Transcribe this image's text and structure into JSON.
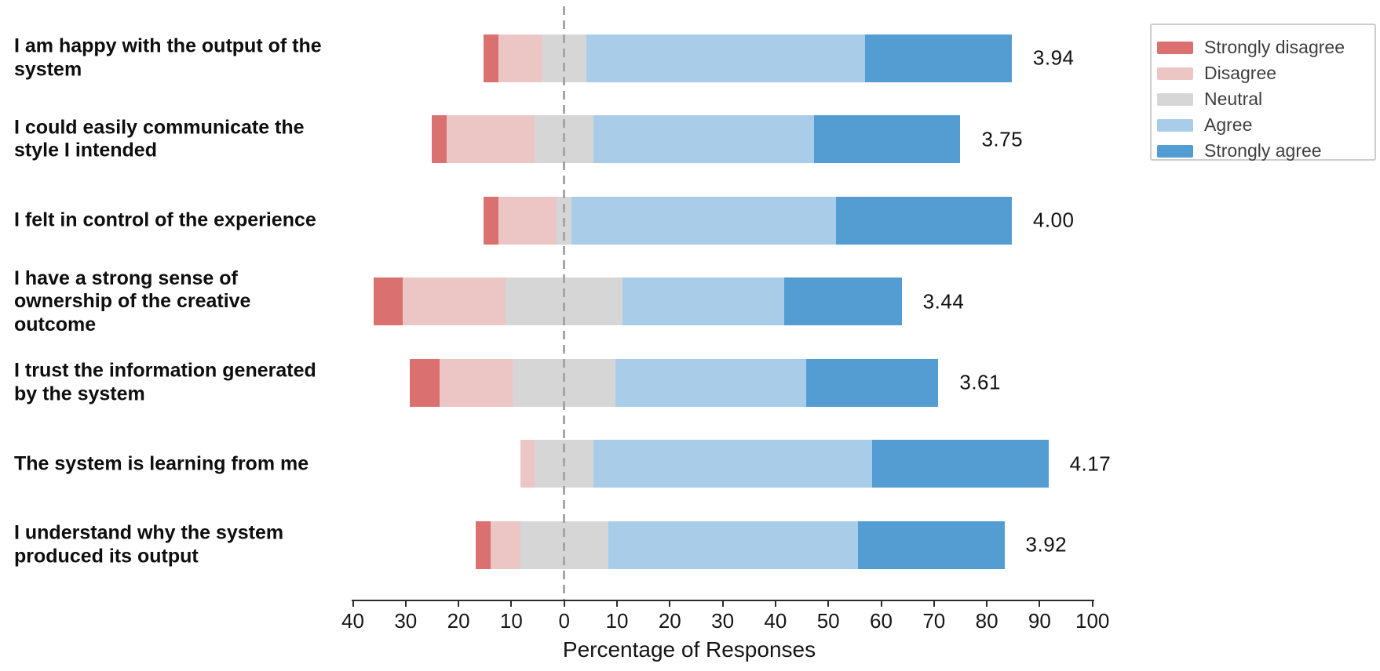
{
  "chart_data": {
    "type": "diverging_stacked_bar",
    "orientation": "horizontal",
    "title": "",
    "xlabel": "Percentage of Responses",
    "ylabel": "",
    "xlim": [
      -40,
      100
    ],
    "grid": false,
    "zero_reference_line": "dashed",
    "neutral_centered_on_zero": true,
    "legend_position": "upper right",
    "categories": [
      "I am happy with the output of the\nsystem",
      "I could easily communicate the\nstyle I intended",
      "I felt in control of the experience",
      "I have a strong sense of\nownership of the creative\noutcome",
      "I trust the information generated\nby the system",
      "The system is learning from me",
      "I understand why the system\nproduced its output"
    ],
    "series": [
      {
        "name": "Strongly disagree",
        "color": "#db7070",
        "values": [
          2.78,
          2.78,
          2.78,
          5.56,
          5.56,
          0,
          2.78
        ]
      },
      {
        "name": "Disagree",
        "color": "#ecc6c5",
        "values": [
          8.33,
          16.67,
          11.11,
          19.44,
          13.89,
          2.78,
          5.56
        ]
      },
      {
        "name": "Neutral",
        "color": "#d6d6d6",
        "values": [
          8.33,
          11.11,
          2.78,
          22.22,
          19.44,
          11.11,
          16.67
        ]
      },
      {
        "name": "Agree",
        "color": "#a9cce9",
        "values": [
          52.78,
          41.67,
          50.0,
          30.56,
          36.11,
          52.78,
          47.22
        ]
      },
      {
        "name": "Strongly agree",
        "color": "#549dd3",
        "values": [
          27.78,
          27.78,
          33.33,
          22.22,
          25.0,
          33.33,
          27.78
        ]
      }
    ],
    "means": [
      "3.94",
      "3.75",
      "4.00",
      "3.44",
      "3.61",
      "4.17",
      "3.92"
    ],
    "x_tick_values": [
      -40,
      -30,
      -20,
      -10,
      0,
      10,
      20,
      30,
      40,
      50,
      60,
      70,
      80,
      90,
      100
    ],
    "x_tick_labels": [
      "40",
      "30",
      "20",
      "10",
      "0",
      "10",
      "20",
      "30",
      "40",
      "50",
      "60",
      "70",
      "80",
      "90",
      "100"
    ]
  },
  "legend": {
    "entries": [
      {
        "label": "Strongly disagree",
        "color": "#db7070"
      },
      {
        "label": "Disagree",
        "color": "#ecc6c5"
      },
      {
        "label": "Neutral",
        "color": "#d6d6d6"
      },
      {
        "label": "Agree",
        "color": "#a9cce9"
      },
      {
        "label": "Strongly agree",
        "color": "#549dd3"
      }
    ]
  }
}
